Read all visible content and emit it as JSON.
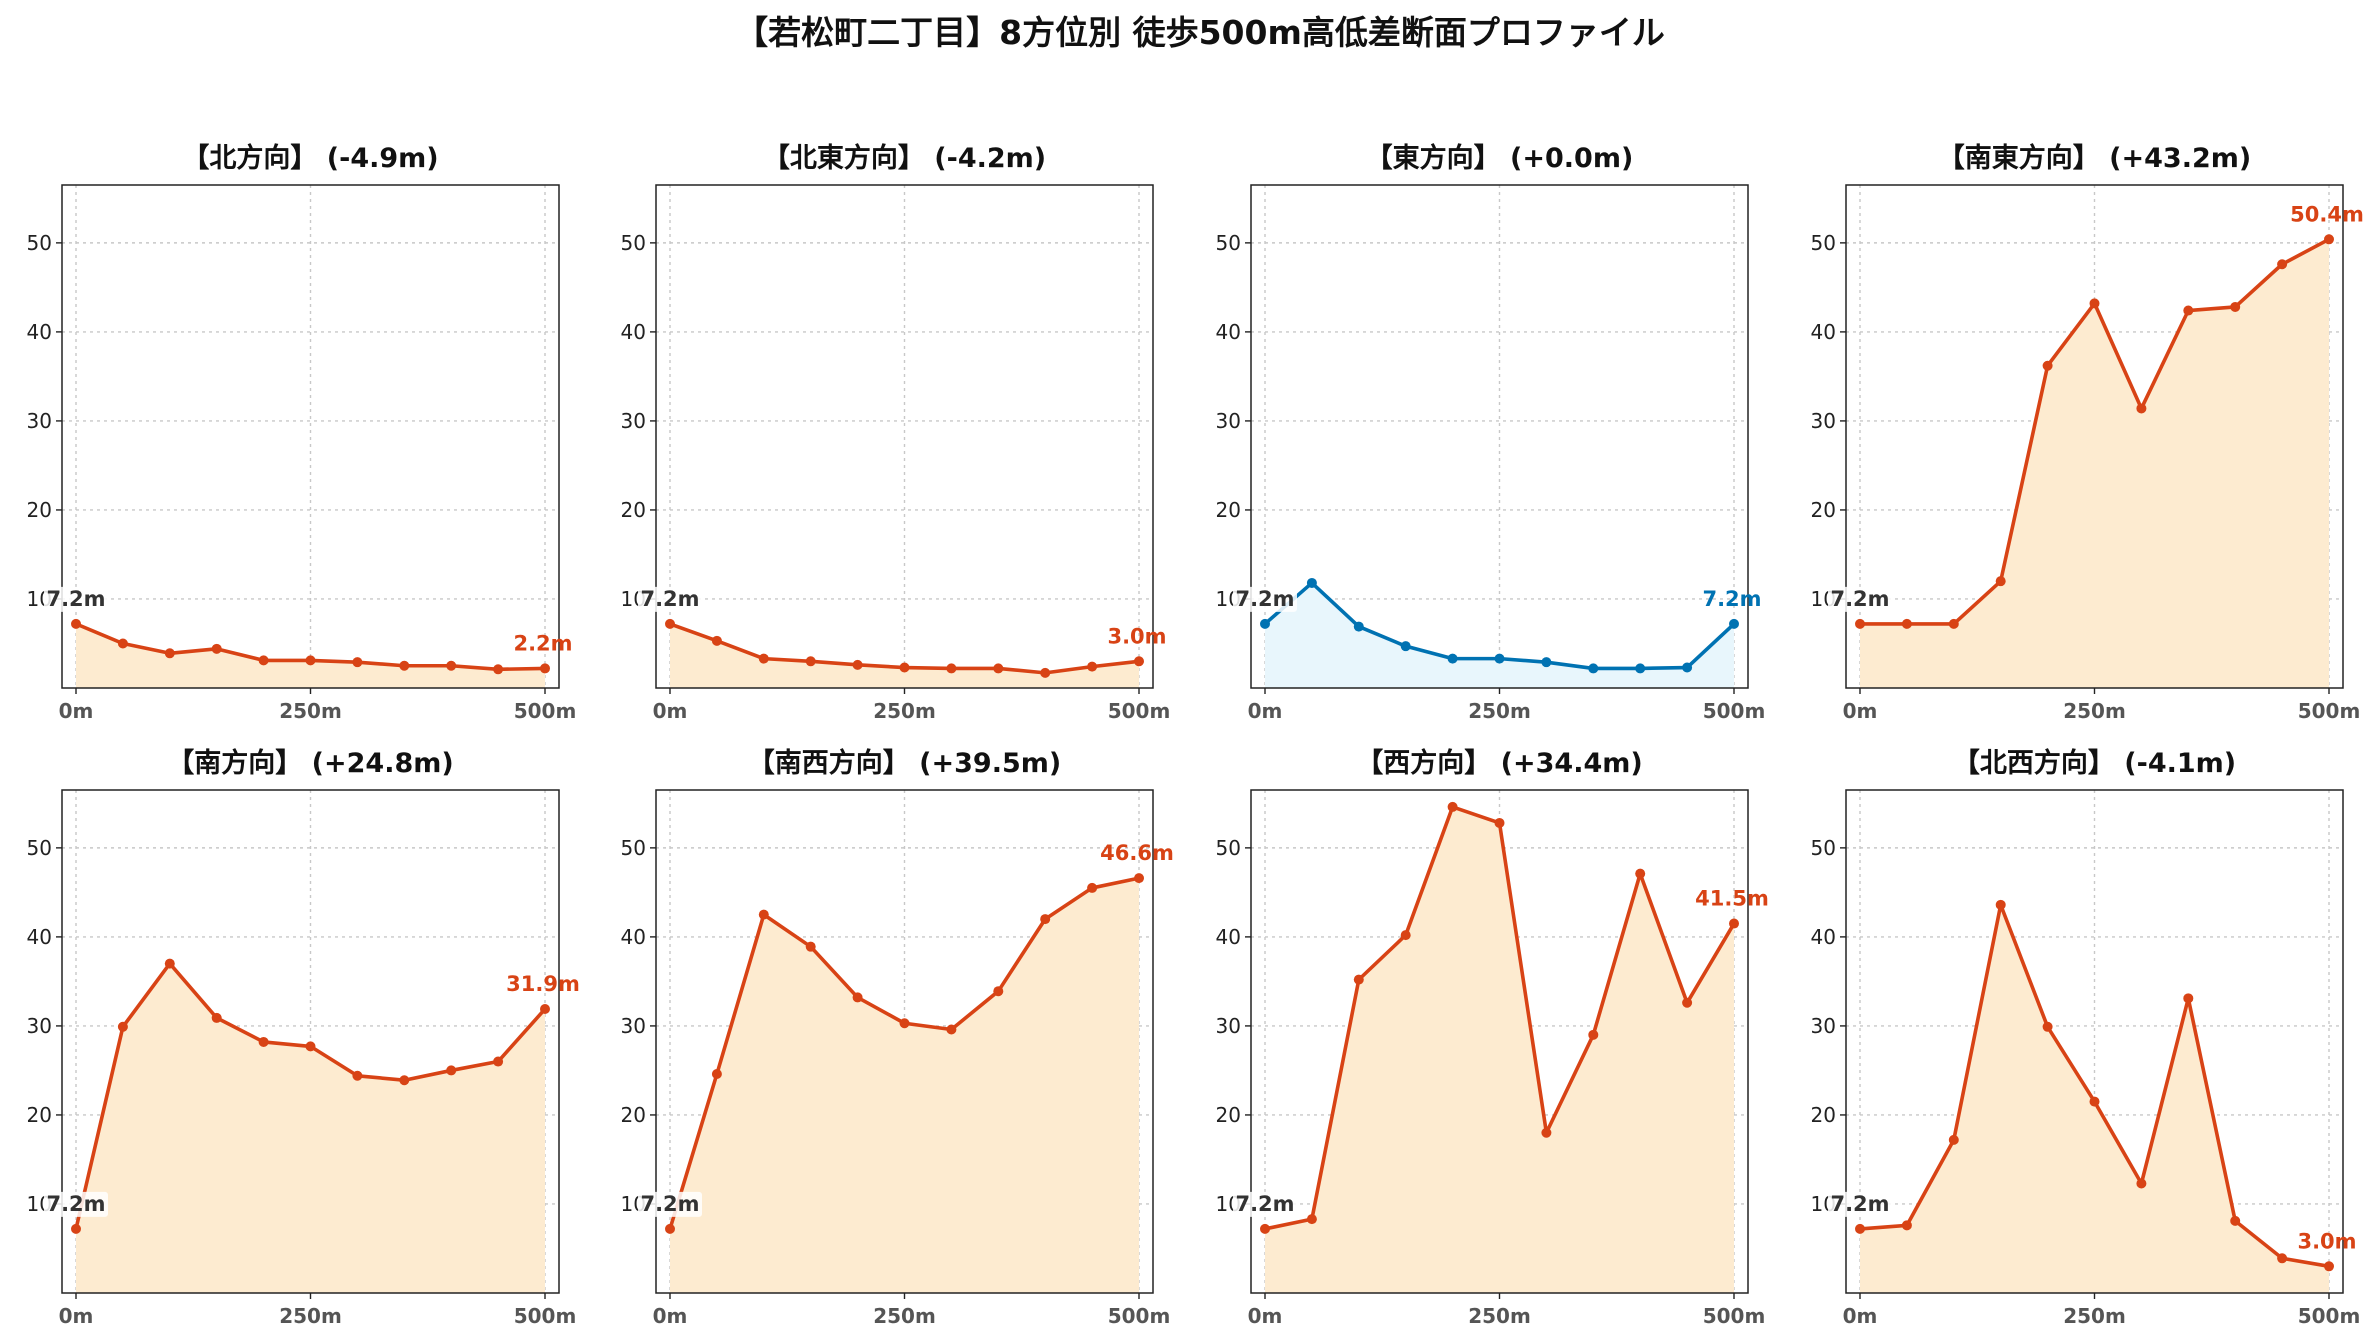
{
  "title": "【若松町二丁目】8方位別 徒歩500m高低差断面プロファイル",
  "chart_data": [
    {
      "type": "area",
      "title": "【北方向】 (-4.9m)",
      "x": [
        0,
        50,
        100,
        150,
        200,
        250,
        300,
        350,
        400,
        450,
        500
      ],
      "values": [
        7.2,
        5.0,
        3.9,
        4.4,
        3.1,
        3.1,
        2.9,
        2.5,
        2.5,
        2.1,
        2.2
      ],
      "xticks": [
        "0m",
        "250m",
        "500m"
      ],
      "yticks": [
        "10",
        "20",
        "30",
        "40",
        "50"
      ],
      "ylim": [
        0,
        56.5
      ],
      "start_label": "7.2m",
      "end_label": "2.2m",
      "line_color": "#d84315",
      "fill_color": "#fdebd0",
      "grid": true
    },
    {
      "type": "area",
      "title": "【北東方向】 (-4.2m)",
      "x": [
        0,
        50,
        100,
        150,
        200,
        250,
        300,
        350,
        400,
        450,
        500
      ],
      "values": [
        7.2,
        5.3,
        3.3,
        3.0,
        2.6,
        2.3,
        2.2,
        2.2,
        1.7,
        2.4,
        3.0
      ],
      "xticks": [
        "0m",
        "250m",
        "500m"
      ],
      "yticks": [
        "10",
        "20",
        "30",
        "40",
        "50"
      ],
      "ylim": [
        0,
        56.5
      ],
      "start_label": "7.2m",
      "end_label": "3.0m",
      "line_color": "#d84315",
      "fill_color": "#fdebd0",
      "grid": true
    },
    {
      "type": "area",
      "title": "【東方向】 (+0.0m)",
      "x": [
        0,
        50,
        100,
        150,
        200,
        250,
        300,
        350,
        400,
        450,
        500
      ],
      "values": [
        7.2,
        11.8,
        6.9,
        4.7,
        3.3,
        3.3,
        2.9,
        2.2,
        2.2,
        2.3,
        7.2
      ],
      "xticks": [
        "0m",
        "250m",
        "500m"
      ],
      "yticks": [
        "10",
        "20",
        "30",
        "40",
        "50"
      ],
      "ylim": [
        0,
        56.5
      ],
      "start_label": "7.2m",
      "end_label": "7.2m",
      "line_color": "#0072b2",
      "fill_color": "#e8f6fc",
      "grid": true
    },
    {
      "type": "area",
      "title": "【南東方向】 (+43.2m)",
      "x": [
        0,
        50,
        100,
        150,
        200,
        250,
        300,
        350,
        400,
        450,
        500
      ],
      "values": [
        7.2,
        7.2,
        7.2,
        12.0,
        36.2,
        43.2,
        31.4,
        42.4,
        42.8,
        47.6,
        50.4
      ],
      "xticks": [
        "0m",
        "250m",
        "500m"
      ],
      "yticks": [
        "10",
        "20",
        "30",
        "40",
        "50"
      ],
      "ylim": [
        0,
        56.5
      ],
      "start_label": "7.2m",
      "end_label": "50.4m",
      "line_color": "#d84315",
      "fill_color": "#fdebd0",
      "grid": true
    },
    {
      "type": "area",
      "title": "【南方向】 (+24.8m)",
      "x": [
        0,
        50,
        100,
        150,
        200,
        250,
        300,
        350,
        400,
        450,
        500
      ],
      "values": [
        7.2,
        29.9,
        37.0,
        30.9,
        28.2,
        27.7,
        24.4,
        23.9,
        25.0,
        26.0,
        31.9
      ],
      "xticks": [
        "0m",
        "250m",
        "500m"
      ],
      "yticks": [
        "10",
        "20",
        "30",
        "40",
        "50"
      ],
      "ylim": [
        0,
        56.5
      ],
      "start_label": "7.2m",
      "end_label": "31.9m",
      "line_color": "#d84315",
      "fill_color": "#fdebd0",
      "grid": true
    },
    {
      "type": "area",
      "title": "【南西方向】 (+39.5m)",
      "x": [
        0,
        50,
        100,
        150,
        200,
        250,
        300,
        350,
        400,
        450,
        500
      ],
      "values": [
        7.2,
        24.6,
        42.5,
        38.9,
        33.2,
        30.3,
        29.6,
        33.9,
        42.0,
        45.5,
        46.6
      ],
      "xticks": [
        "0m",
        "250m",
        "500m"
      ],
      "yticks": [
        "10",
        "20",
        "30",
        "40",
        "50"
      ],
      "ylim": [
        0,
        56.5
      ],
      "start_label": "7.2m",
      "end_label": "46.6m",
      "line_color": "#d84315",
      "fill_color": "#fdebd0",
      "grid": true
    },
    {
      "type": "area",
      "title": "【西方向】 (+34.4m)",
      "x": [
        0,
        50,
        100,
        150,
        200,
        250,
        300,
        350,
        400,
        450,
        500
      ],
      "values": [
        7.2,
        8.3,
        35.2,
        40.2,
        54.6,
        52.8,
        18.0,
        29.0,
        47.1,
        32.6,
        41.5
      ],
      "xticks": [
        "0m",
        "250m",
        "500m"
      ],
      "yticks": [
        "10",
        "20",
        "30",
        "40",
        "50"
      ],
      "ylim": [
        0,
        56.5
      ],
      "start_label": "7.2m",
      "end_label": "41.5m",
      "line_color": "#d84315",
      "fill_color": "#fdebd0",
      "grid": true
    },
    {
      "type": "area",
      "title": "【北西方向】 (-4.1m)",
      "x": [
        0,
        50,
        100,
        150,
        200,
        250,
        300,
        350,
        400,
        450,
        500
      ],
      "values": [
        7.2,
        7.6,
        17.2,
        43.6,
        29.9,
        21.5,
        12.3,
        33.1,
        8.1,
        3.9,
        3.0
      ],
      "xticks": [
        "0m",
        "250m",
        "500m"
      ],
      "yticks": [
        "10",
        "20",
        "30",
        "40",
        "50"
      ],
      "ylim": [
        0,
        56.5
      ],
      "start_label": "7.2m",
      "end_label": "3.0m",
      "line_color": "#d84315",
      "fill_color": "#fdebd0",
      "grid": true
    }
  ]
}
